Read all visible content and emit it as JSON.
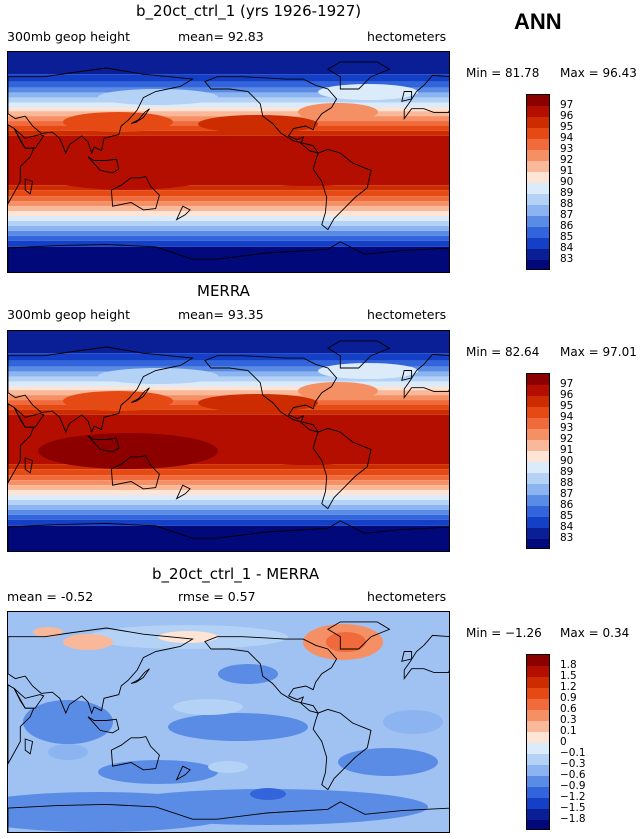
{
  "panels": [
    {
      "title": "b_20ct_ctrl_1 (yrs 1926-1927)",
      "left_label": "300mb  geop height",
      "center_label": "mean=   92.83",
      "right_label": "hectometers",
      "min_label": "Min =   81.78",
      "max_label": "Max =   96.43",
      "levels": [
        "97",
        "96",
        "95",
        "94",
        "93",
        "92",
        "91",
        "90",
        "89",
        "88",
        "87",
        "86",
        "85",
        "84",
        "83"
      ],
      "colors": [
        "#8c0000",
        "#b40e00",
        "#cc2c00",
        "#e64a14",
        "#f06a3c",
        "#f58f64",
        "#fab89a",
        "#fde4d4",
        "#dcebfa",
        "#b4d2f6",
        "#8cb4f0",
        "#5a8ce6",
        "#3264dc",
        "#1440c8",
        "#0a1e96",
        "#00087a"
      ]
    },
    {
      "title": "MERRA",
      "left_label": "300mb  geop height",
      "center_label": "mean=   93.35",
      "right_label": "hectometers",
      "min_label": "Min =   82.64",
      "max_label": "Max =   97.01",
      "levels": [
        "97",
        "96",
        "95",
        "94",
        "93",
        "92",
        "91",
        "90",
        "89",
        "88",
        "87",
        "86",
        "85",
        "84",
        "83"
      ],
      "colors": [
        "#8c0000",
        "#b40e00",
        "#cc2c00",
        "#e64a14",
        "#f06a3c",
        "#f58f64",
        "#fab89a",
        "#fde4d4",
        "#dcebfa",
        "#b4d2f6",
        "#8cb4f0",
        "#5a8ce6",
        "#3264dc",
        "#1440c8",
        "#0a1e96",
        "#00087a"
      ]
    },
    {
      "title": "b_20ct_ctrl_1 - MERRA",
      "left_label": "mean =    -0.52",
      "center_label": "rmse =    0.57",
      "right_label": "hectometers",
      "min_label": "Min =   −1.26",
      "max_label": "Max =     0.34",
      "levels": [
        "1.8",
        "1.5",
        "1.2",
        "0.9",
        "0.6",
        "0.3",
        "0.1",
        "0",
        "−0.1",
        "−0.3",
        "−0.6",
        "−0.9",
        "−1.2",
        "−1.5",
        "−1.8"
      ],
      "colors": [
        "#8c0000",
        "#b40e00",
        "#cc2c00",
        "#e64a14",
        "#f06a3c",
        "#f58f64",
        "#fab89a",
        "#fde4d4",
        "#dcebfa",
        "#b4d2f6",
        "#8cb4f0",
        "#5a8ce6",
        "#3264dc",
        "#1440c8",
        "#0a1e96",
        "#00087a"
      ]
    }
  ],
  "season": "ANN",
  "chart_data": [
    {
      "type": "heatmap",
      "title": "b_20ct_ctrl_1 (yrs 1926-1927)",
      "variable": "300mb geop height",
      "units": "hectometers",
      "mean": 92.83,
      "min": 81.78,
      "max": 96.43,
      "contour_levels": [
        83,
        84,
        85,
        86,
        87,
        88,
        89,
        90,
        91,
        92,
        93,
        94,
        95,
        96,
        97
      ]
    },
    {
      "type": "heatmap",
      "title": "MERRA",
      "variable": "300mb geop height",
      "units": "hectometers",
      "mean": 93.35,
      "min": 82.64,
      "max": 97.01,
      "contour_levels": [
        83,
        84,
        85,
        86,
        87,
        88,
        89,
        90,
        91,
        92,
        93,
        94,
        95,
        96,
        97
      ]
    },
    {
      "type": "heatmap",
      "title": "b_20ct_ctrl_1 - MERRA",
      "units": "hectometers",
      "mean": -0.52,
      "rmse": 0.57,
      "min": -1.26,
      "max": 0.34,
      "contour_levels": [
        -1.8,
        -1.5,
        -1.2,
        -0.9,
        -0.6,
        -0.3,
        -0.1,
        0,
        0.1,
        0.3,
        0.6,
        0.9,
        1.2,
        1.5,
        1.8
      ]
    }
  ]
}
